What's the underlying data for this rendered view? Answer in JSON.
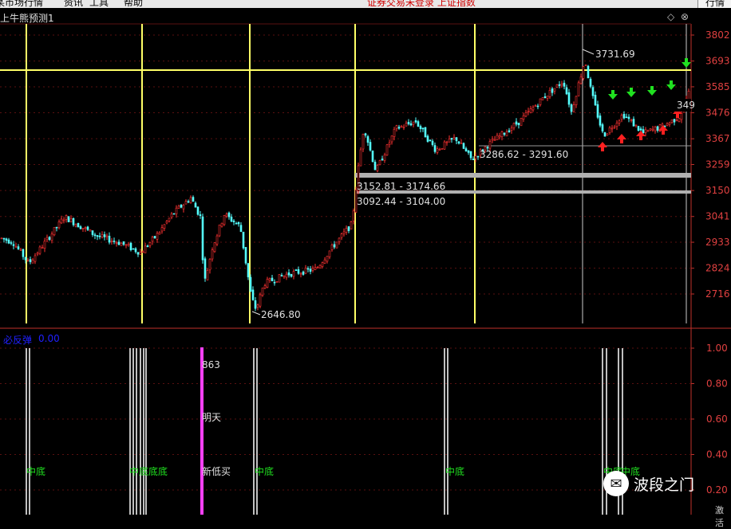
{
  "menu": {
    "items": [
      "某市场行情",
      "资讯",
      "工具",
      "帮助"
    ],
    "status": "证券交易未登录 上证指数",
    "right_button": "行情"
  },
  "chart": {
    "title": "上牛熊预测1",
    "icons": [
      "◇",
      "⊗"
    ]
  },
  "price_axis": {
    "ticks": [
      "3802",
      "3693",
      "3585",
      "3476",
      "3367",
      "3259",
      "3150",
      "3041",
      "2933",
      "2824",
      "2716"
    ],
    "current_tag": "349"
  },
  "annotations": {
    "high": "3731.69",
    "low": "2646.80",
    "gap1": "3286.62 - 3291.60",
    "gap2": "3152.81 - 3174.66",
    "gap3": "3092.44 - 3104.00"
  },
  "indicator": {
    "label": "必反弹",
    "value": "0.00",
    "axis_ticks": [
      "1.00",
      "0.80",
      "0.60",
      "0.40",
      "0.20"
    ],
    "texts": {
      "n863": "863",
      "tomorrow": "明天",
      "new_low_buy": "新低买",
      "mid_bottom": "中底",
      "mid_bottom_multi": "中底底底"
    }
  },
  "watermark": {
    "icon": "wechat-icon",
    "text": "波段之门"
  },
  "bottom_right": "激活",
  "colors": {
    "up": "#ff3232",
    "down": "#54ffff",
    "yellow_line": "#ffff66",
    "axis": "#c0302a",
    "grid": "#5a1010",
    "magenta": "#ff40ff",
    "green_label": "#20e020"
  },
  "chart_data": {
    "type": "candlestick",
    "ylim": [
      2646.8,
      3802
    ],
    "y_ticks": [
      3802,
      3693,
      3585,
      3476,
      3367,
      3259,
      3150,
      3041,
      2933,
      2824,
      2716
    ],
    "anchors": [
      [
        0,
        2950
      ],
      [
        15,
        2935
      ],
      [
        35,
        2845
      ],
      [
        48,
        2900
      ],
      [
        80,
        3040
      ],
      [
        120,
        2960
      ],
      [
        150,
        2930
      ],
      [
        175,
        2890
      ],
      [
        195,
        2960
      ],
      [
        215,
        3050
      ],
      [
        238,
        3120
      ],
      [
        250,
        3040
      ],
      [
        255,
        2760
      ],
      [
        265,
        2910
      ],
      [
        280,
        3050
      ],
      [
        300,
        3000
      ],
      [
        314,
        2700
      ],
      [
        320,
        2650
      ],
      [
        330,
        2760
      ],
      [
        360,
        2800
      ],
      [
        395,
        2820
      ],
      [
        415,
        2910
      ],
      [
        440,
        3010
      ],
      [
        447,
        3220
      ],
      [
        455,
        3420
      ],
      [
        470,
        3230
      ],
      [
        495,
        3410
      ],
      [
        520,
        3440
      ],
      [
        545,
        3320
      ],
      [
        570,
        3370
      ],
      [
        590,
        3280
      ],
      [
        610,
        3340
      ],
      [
        650,
        3440
      ],
      [
        680,
        3540
      ],
      [
        705,
        3610
      ],
      [
        715,
        3480
      ],
      [
        732,
        3700
      ],
      [
        740,
        3560
      ],
      [
        755,
        3380
      ],
      [
        780,
        3470
      ],
      [
        805,
        3390
      ],
      [
        830,
        3420
      ],
      [
        850,
        3460
      ],
      [
        862,
        3560
      ]
    ],
    "vertical_markers_x": [
      33,
      178,
      313,
      445,
      595,
      730,
      860
    ]
  }
}
